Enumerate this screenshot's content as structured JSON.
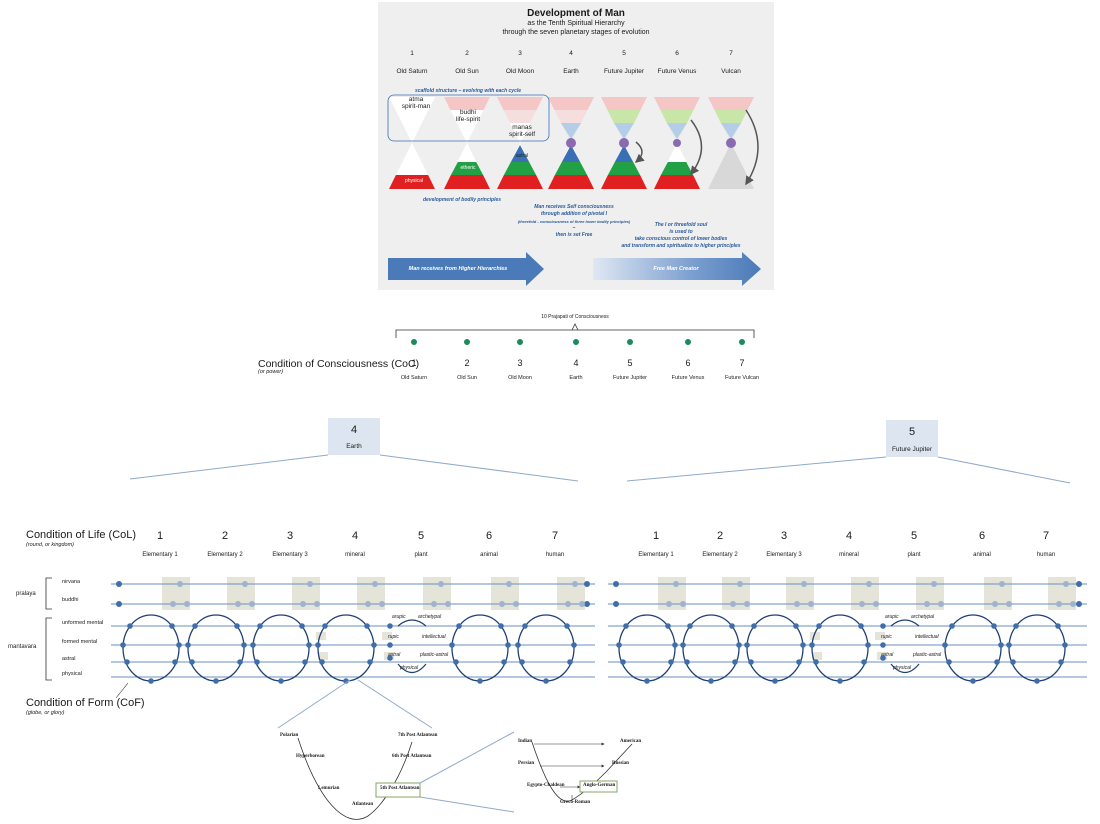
{
  "top_panel": {
    "title": "Development of Man",
    "subtitle1": "as the Tenth Spiritual Hierarchy",
    "subtitle2": "through the seven planetary stages of evolution",
    "stage_numbers": [
      "1",
      "2",
      "3",
      "4",
      "5",
      "6",
      "7"
    ],
    "stage_names": [
      "Old Saturn",
      "Old Sun",
      "Old Moon",
      "Earth",
      "Future Jupiter",
      "Future Venus",
      "Vulcan"
    ],
    "scaffold_note": "scaffold structure – evolving with each cycle",
    "spirit_labels": {
      "atma": "atma",
      "spirit_man": "spirit-man",
      "budhi": "budhi",
      "life_spirit": "life-spirit",
      "manas": "manas",
      "spirit_self": "spirit-self"
    },
    "body_labels": {
      "physical": "physical",
      "etheric": "etheric",
      "astral": "astral"
    },
    "bodily_note": "development of bodily principles",
    "self_note": [
      "Man receives Self consciousness",
      "through addition of pivotal I",
      "(threefold - consciousness of three lower bodily principles)",
      "–",
      "then is set Free"
    ],
    "soul_note": [
      "The I or threefold soul",
      "is used to",
      "take conscious control of lower bodies",
      "and transform and spiritualize to higher principles"
    ],
    "arrow_left": "Man receives from Higher Hierarchies",
    "arrow_right": "Free Man Creator",
    "colors": {
      "red": "#e02020",
      "green": "#22a045",
      "blue": "#3a6fb5",
      "pink": "#f4c6c6",
      "lightgreen": "#c8e6a8",
      "lightblue": "#b4cde8",
      "purple": "#8a6ab0"
    }
  },
  "coc": {
    "bracket_label": "10 Prajapati of Consciousness",
    "title": "Condition of Consciousness (CoC)",
    "subtitle": "(or power)",
    "numbers": [
      "1",
      "2",
      "3",
      "4",
      "5",
      "6",
      "7"
    ],
    "names": [
      "Old Saturn",
      "Old Sun",
      "Old Moon",
      "Earth",
      "Future Jupiter",
      "Future Venus",
      "Future Vulcan"
    ]
  },
  "boxes": [
    {
      "number": "4",
      "name": "Earth"
    },
    {
      "number": "5",
      "name": "Future Jupiter"
    }
  ],
  "col": {
    "title": "Condition of Life (CoL)",
    "subtitle": "(round, or kingdom)",
    "numbers": [
      "1",
      "2",
      "3",
      "4",
      "5",
      "6",
      "7"
    ],
    "names": [
      "Elementary 1",
      "Elementary 2",
      "Elementary 3",
      "mineral",
      "plant",
      "animal",
      "human"
    ]
  },
  "planes": {
    "pralaya": "pralaya",
    "mantavara": "mantavara",
    "levels": [
      "nirvana",
      "buddhi",
      "unformed mental",
      "formed mental",
      "astral",
      "physical"
    ]
  },
  "form_labels": {
    "arupic": "arupic",
    "archetypal": "archetypal",
    "rupic": "rupic",
    "intellectual": "intellectual",
    "astral": "astral",
    "plastic_astral": "plastic-astral",
    "physical": "physical"
  },
  "cof": {
    "title": "Condition of Form (CoF)",
    "subtitle": "(globe, or glory)"
  },
  "epochs": {
    "polarian": "Polarian",
    "hyperborean": "Hyperborean",
    "lemurian": "Lemurian",
    "atlantean": "Atlantean",
    "post5": "5th Post Atlantean",
    "post6": "6th Post Atlantean",
    "post7": "7th Post Atlantean"
  },
  "cultures": {
    "indian": "Indian",
    "persian": "Persian",
    "egypto": "Egypto-Chaldean",
    "greco": "Greco-Roman",
    "anglo": "Anglo-German",
    "russian": "Russian",
    "american": "American"
  }
}
